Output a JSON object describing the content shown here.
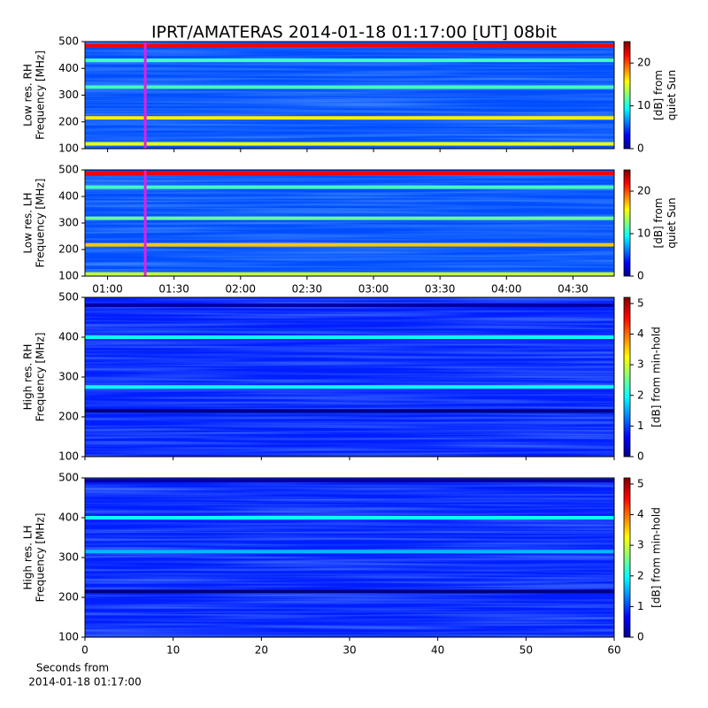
{
  "title": "IPRT/AMATERAS 2014-01-18 01:17:00 [UT]   08bit",
  "chart_data": [
    {
      "type": "heatmap",
      "ylabel": [
        "Low res. RH",
        "Frequency [MHz]"
      ],
      "xlim": [
        0.83,
        4.81
      ],
      "xticks": [
        {
          "value": 1.0,
          "label": "01:00"
        },
        {
          "value": 1.5,
          "label": "01:30"
        },
        {
          "value": 2.0,
          "label": "02:00"
        },
        {
          "value": 2.5,
          "label": "02:30"
        },
        {
          "value": 3.0,
          "label": "03:00"
        },
        {
          "value": 3.5,
          "label": "03:30"
        },
        {
          "value": 4.0,
          "label": "04:00"
        },
        {
          "value": 4.5,
          "label": "04:30"
        }
      ],
      "xticklabels": false,
      "ylim": [
        100,
        500
      ],
      "yticks": [
        100,
        200,
        300,
        400,
        500
      ],
      "marker_x": 1.2833,
      "marker_color": "#e020e0",
      "background": 5,
      "bands": [
        {
          "freq": 485,
          "db": 22
        },
        {
          "freq": 430,
          "db": 11
        },
        {
          "freq": 330,
          "db": 11
        },
        {
          "freq": 215,
          "db": 16
        },
        {
          "freq": 118,
          "db": 15
        }
      ],
      "clim": [
        0,
        25
      ],
      "cticks": [
        0,
        10,
        20
      ],
      "clabel": [
        "[dB] from",
        "quiet Sun"
      ]
    },
    {
      "type": "heatmap",
      "ylabel": [
        "Low res. LH",
        "Frequency [MHz]"
      ],
      "xlim": [
        0.83,
        4.81
      ],
      "xticks": [
        {
          "value": 1.0,
          "label": "01:00"
        },
        {
          "value": 1.5,
          "label": "01:30"
        },
        {
          "value": 2.0,
          "label": "02:00"
        },
        {
          "value": 2.5,
          "label": "02:30"
        },
        {
          "value": 3.0,
          "label": "03:00"
        },
        {
          "value": 3.5,
          "label": "03:30"
        },
        {
          "value": 4.0,
          "label": "04:00"
        },
        {
          "value": 4.5,
          "label": "04:30"
        }
      ],
      "xticklabels": true,
      "ylim": [
        100,
        500
      ],
      "yticks": [
        100,
        200,
        300,
        400,
        500
      ],
      "marker_x": 1.2833,
      "marker_color": "#e020e0",
      "background": 5,
      "bands": [
        {
          "freq": 487,
          "db": 22
        },
        {
          "freq": 435,
          "db": 11
        },
        {
          "freq": 318,
          "db": 12
        },
        {
          "freq": 218,
          "db": 17
        },
        {
          "freq": 108,
          "db": 14
        }
      ],
      "clim": [
        0,
        25
      ],
      "cticks": [
        0,
        10,
        20
      ],
      "clabel": [
        "[dB] from",
        "quiet Sun"
      ]
    },
    {
      "type": "heatmap",
      "ylabel": [
        "High res. RH",
        "Frequency [MHz]"
      ],
      "xlim": [
        0,
        60
      ],
      "xticks": [
        0,
        10,
        20,
        30,
        40,
        50,
        60
      ],
      "xticklabels": false,
      "ylim": [
        100,
        500
      ],
      "yticks": [
        100,
        200,
        300,
        400,
        500
      ],
      "background": 0.8,
      "bands": [
        {
          "freq": 480,
          "db": 0.2
        },
        {
          "freq": 400,
          "db": 2
        },
        {
          "freq": 275,
          "db": 2
        },
        {
          "freq": 215,
          "db": 0
        }
      ],
      "clim": [
        0,
        5.2
      ],
      "cticks": [
        0,
        1,
        2,
        3,
        4,
        5
      ],
      "clabel": [
        "[dB] from min-hold"
      ]
    },
    {
      "type": "heatmap",
      "ylabel": [
        "High res. LH",
        "Frequency [MHz]"
      ],
      "xlim": [
        0,
        60
      ],
      "xticks": [
        0,
        10,
        20,
        30,
        40,
        50,
        60
      ],
      "xticklabels": true,
      "xlabel": [
        "Seconds from",
        "2014-01-18 01:17:00"
      ],
      "ylim": [
        100,
        500
      ],
      "yticks": [
        100,
        200,
        300,
        400,
        500
      ],
      "background": 0.8,
      "bands": [
        {
          "freq": 493,
          "db": 0.2
        },
        {
          "freq": 400,
          "db": 2
        },
        {
          "freq": 315,
          "db": 1.6
        },
        {
          "freq": 215,
          "db": 0
        }
      ],
      "clim": [
        0,
        5.2
      ],
      "cticks": [
        0,
        1,
        2,
        3,
        4,
        5
      ],
      "clabel": [
        "[dB] from min-hold"
      ]
    }
  ]
}
